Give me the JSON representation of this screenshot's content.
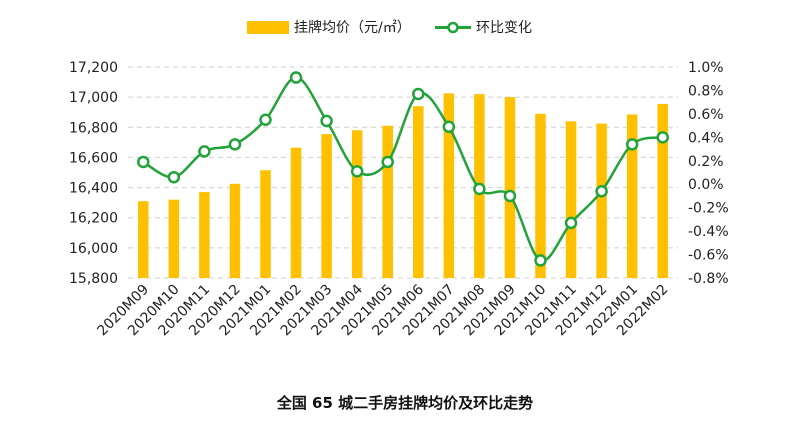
{
  "chart_data": {
    "type": "bar",
    "title": "全国 65 城二手房挂牌均价及环比走势",
    "categories": [
      "2020M09",
      "2020M10",
      "2020M11",
      "2020M12",
      "2021M01",
      "2021M02",
      "2021M03",
      "2021M04",
      "2021M05",
      "2021M06",
      "2021M07",
      "2021M08",
      "2021M09",
      "2021M10",
      "2021M11",
      "2021M12",
      "2022M01",
      "2022M02"
    ],
    "series": [
      {
        "name": "挂牌均价（元/㎡）",
        "type": "bar",
        "axis": "left",
        "color": "#FFC000",
        "values": [
          16310,
          16320,
          16370,
          16425,
          16515,
          16665,
          16755,
          16780,
          16810,
          16940,
          17025,
          17020,
          17000,
          16890,
          16840,
          16825,
          16885,
          16955
        ]
      },
      {
        "name": "环比变化",
        "type": "line",
        "axis": "right",
        "color": "#21A33A",
        "values": [
          0.19,
          0.06,
          0.28,
          0.34,
          0.55,
          0.91,
          0.54,
          0.11,
          0.19,
          0.77,
          0.49,
          -0.04,
          -0.1,
          -0.65,
          -0.33,
          -0.06,
          0.34,
          0.4
        ]
      }
    ],
    "y_left": {
      "ylim": [
        15800,
        17200
      ],
      "ticks": [
        15800,
        16000,
        16200,
        16400,
        16600,
        16800,
        17000,
        17200
      ],
      "tick_labels": [
        "15,800",
        "16,000",
        "16,200",
        "16,400",
        "16,600",
        "16,800",
        "17,000",
        "17,200"
      ]
    },
    "y_right": {
      "ylim": [
        -0.8,
        1.0
      ],
      "ticks": [
        -0.8,
        -0.6,
        -0.4,
        -0.2,
        0.0,
        0.2,
        0.4,
        0.6,
        0.8,
        1.0
      ],
      "tick_labels": [
        "-0.8%",
        "-0.6%",
        "-0.4%",
        "-0.2%",
        "0.0%",
        "0.2%",
        "0.4%",
        "0.6%",
        "0.8%",
        "1.0%"
      ]
    },
    "grid": true,
    "legend_position": "top-center"
  }
}
